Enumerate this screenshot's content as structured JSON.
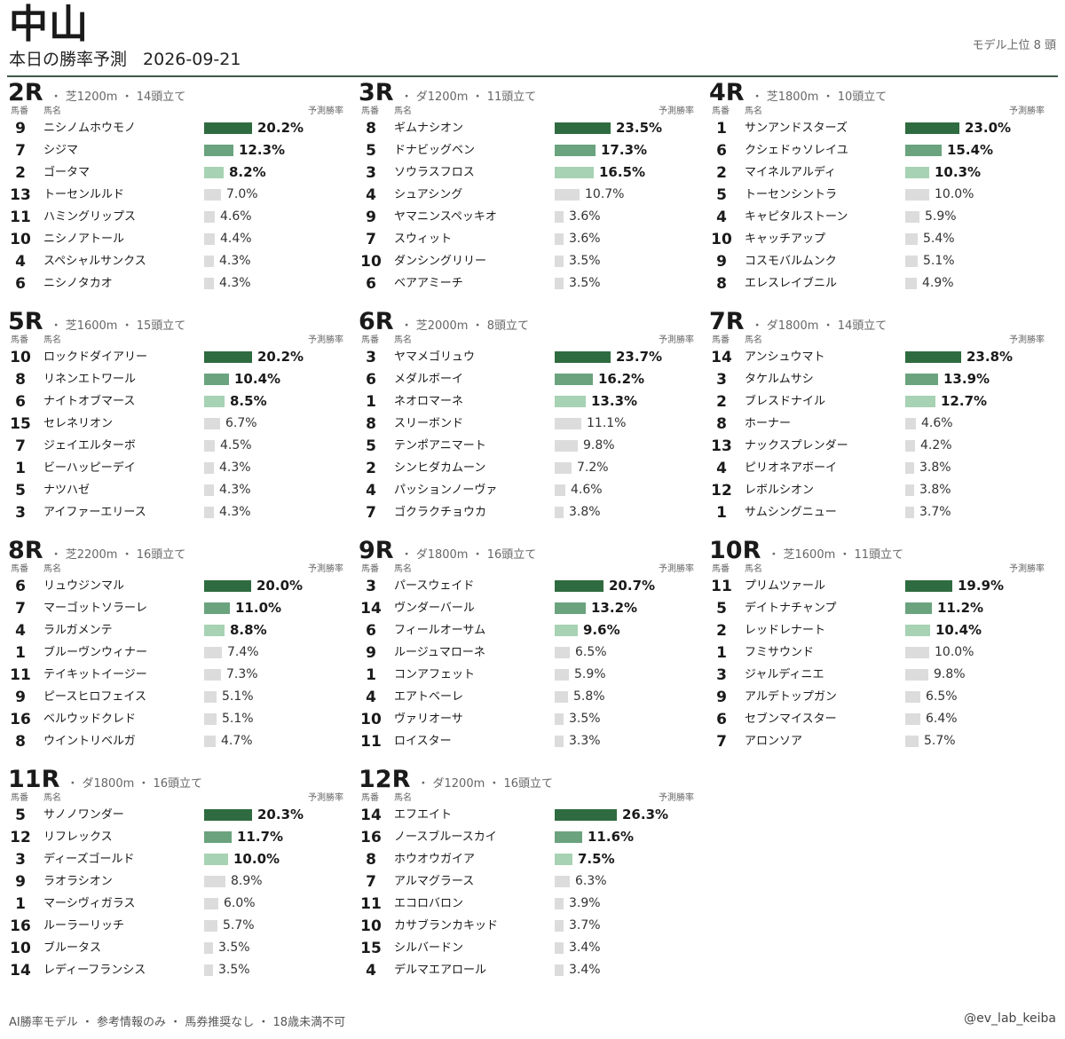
{
  "header": {
    "venue": "中山",
    "subtitle": "本日の勝率予測",
    "date": "2026-09-21",
    "top_n": "モデル上位 8 頭"
  },
  "labels": {
    "col_num": "馬番",
    "col_name": "馬名",
    "col_prob": "予測勝率"
  },
  "footer": {
    "disclaimer": "AI勝率モデル ・ 参考情報のみ ・ 馬券推奨なし ・ 18歳未満不可",
    "handle": "@ev_lab_keiba"
  },
  "colors": {
    "rank1": "#2f6b40",
    "rank2": "#6aa37e",
    "rank3": "#a7d2b3",
    "other": "#dcdcdc",
    "rule": "#3d5a47"
  },
  "chart_data": [
    {
      "type": "bar",
      "race": "2R",
      "meta": "・ 芝1200m ・ 14頭立て",
      "horse_numbers": [
        "9",
        "7",
        "2",
        "13",
        "11",
        "10",
        "4",
        "6"
      ],
      "categories": [
        "ニシノムホウモノ",
        "シジマ",
        "ゴータマ",
        "トーセンルルド",
        "ハミングリップス",
        "ニシノアトール",
        "スペシャルサンクス",
        "ニシノタカオ"
      ],
      "values": [
        20.2,
        12.3,
        8.2,
        7.0,
        4.6,
        4.4,
        4.3,
        4.3
      ],
      "labels": [
        "20.2%",
        "12.3%",
        "8.2%",
        "7.0%",
        "4.6%",
        "4.4%",
        "4.3%",
        "4.3%"
      ]
    },
    {
      "type": "bar",
      "race": "3R",
      "meta": "・ ダ1200m ・ 11頭立て",
      "horse_numbers": [
        "8",
        "5",
        "3",
        "4",
        "9",
        "7",
        "10",
        "6"
      ],
      "categories": [
        "ギムナシオン",
        "ドナビッグベン",
        "ソウラスフロス",
        "シュアシング",
        "ヤマニンスペッキオ",
        "スウィット",
        "ダンシングリリー",
        "ベアアミーチ"
      ],
      "values": [
        23.5,
        17.3,
        16.5,
        10.7,
        3.6,
        3.6,
        3.5,
        3.5
      ],
      "labels": [
        "23.5%",
        "17.3%",
        "16.5%",
        "10.7%",
        "3.6%",
        "3.6%",
        "3.5%",
        "3.5%"
      ]
    },
    {
      "type": "bar",
      "race": "4R",
      "meta": "・ 芝1800m ・ 10頭立て",
      "horse_numbers": [
        "1",
        "6",
        "2",
        "5",
        "4",
        "10",
        "9",
        "8"
      ],
      "categories": [
        "サンアンドスターズ",
        "クシェドゥソレイユ",
        "マイネルアルディ",
        "トーセンシントラ",
        "キャピタルストーン",
        "キャッチアップ",
        "コスモバルムンク",
        "エレスレイブニル"
      ],
      "values": [
        23.0,
        15.4,
        10.3,
        10.0,
        5.9,
        5.4,
        5.1,
        4.9
      ],
      "labels": [
        "23.0%",
        "15.4%",
        "10.3%",
        "10.0%",
        "5.9%",
        "5.4%",
        "5.1%",
        "4.9%"
      ]
    },
    {
      "type": "bar",
      "race": "5R",
      "meta": "・ 芝1600m ・ 15頭立て",
      "horse_numbers": [
        "10",
        "8",
        "6",
        "15",
        "7",
        "1",
        "5",
        "3"
      ],
      "categories": [
        "ロックドダイアリー",
        "リネンエトワール",
        "ナイトオブマース",
        "セレネリオン",
        "ジェイエルターボ",
        "ビーハッピーデイ",
        "ナツハゼ",
        "アイファーエリース"
      ],
      "values": [
        20.2,
        10.4,
        8.5,
        6.7,
        4.5,
        4.3,
        4.3,
        4.3
      ],
      "labels": [
        "20.2%",
        "10.4%",
        "8.5%",
        "6.7%",
        "4.5%",
        "4.3%",
        "4.3%",
        "4.3%"
      ]
    },
    {
      "type": "bar",
      "race": "6R",
      "meta": "・ 芝2000m ・ 8頭立て",
      "horse_numbers": [
        "3",
        "6",
        "1",
        "8",
        "5",
        "2",
        "4",
        "7"
      ],
      "categories": [
        "ヤマメゴリュウ",
        "メダルボーイ",
        "ネオロマーネ",
        "スリーボンド",
        "テンポアニマート",
        "シンヒダカムーン",
        "パッションノーヴァ",
        "ゴクラクチョウカ"
      ],
      "values": [
        23.7,
        16.2,
        13.3,
        11.1,
        9.8,
        7.2,
        4.6,
        3.8
      ],
      "labels": [
        "23.7%",
        "16.2%",
        "13.3%",
        "11.1%",
        "9.8%",
        "7.2%",
        "4.6%",
        "3.8%"
      ]
    },
    {
      "type": "bar",
      "race": "7R",
      "meta": "・ ダ1800m ・ 14頭立て",
      "horse_numbers": [
        "14",
        "3",
        "2",
        "8",
        "13",
        "4",
        "12",
        "1"
      ],
      "categories": [
        "アンシュウマト",
        "タケルムサシ",
        "ブレスドナイル",
        "ホーナー",
        "ナックスプレンダー",
        "ピリオネアボーイ",
        "レボルシオン",
        "サムシングニュー"
      ],
      "values": [
        23.8,
        13.9,
        12.7,
        4.6,
        4.2,
        3.8,
        3.8,
        3.7
      ],
      "labels": [
        "23.8%",
        "13.9%",
        "12.7%",
        "4.6%",
        "4.2%",
        "3.8%",
        "3.8%",
        "3.7%"
      ]
    },
    {
      "type": "bar",
      "race": "8R",
      "meta": "・ 芝2200m ・ 16頭立て",
      "horse_numbers": [
        "6",
        "7",
        "4",
        "1",
        "11",
        "9",
        "16",
        "8"
      ],
      "categories": [
        "リュウジンマル",
        "マーゴットソラーレ",
        "ラルガメンテ",
        "ブルーヴンウィナー",
        "テイキットイージー",
        "ピースヒロフェイス",
        "ベルウッドクレド",
        "ウイントリベルガ"
      ],
      "values": [
        20.0,
        11.0,
        8.8,
        7.4,
        7.3,
        5.1,
        5.1,
        4.7
      ],
      "labels": [
        "20.0%",
        "11.0%",
        "8.8%",
        "7.4%",
        "7.3%",
        "5.1%",
        "5.1%",
        "4.7%"
      ]
    },
    {
      "type": "bar",
      "race": "9R",
      "meta": "・ ダ1800m ・ 16頭立て",
      "horse_numbers": [
        "3",
        "14",
        "6",
        "9",
        "1",
        "4",
        "10",
        "11"
      ],
      "categories": [
        "パースウェイド",
        "ヴンダーバール",
        "フィールオーサム",
        "ルージュマローネ",
        "コンアフェット",
        "エアトベーレ",
        "ヴァリオーサ",
        "ロイスター"
      ],
      "values": [
        20.7,
        13.2,
        9.6,
        6.5,
        5.9,
        5.8,
        3.5,
        3.3
      ],
      "labels": [
        "20.7%",
        "13.2%",
        "9.6%",
        "6.5%",
        "5.9%",
        "5.8%",
        "3.5%",
        "3.3%"
      ]
    },
    {
      "type": "bar",
      "race": "10R",
      "meta": "・ 芝1600m ・ 11頭立て",
      "horse_numbers": [
        "11",
        "5",
        "2",
        "1",
        "3",
        "9",
        "6",
        "7"
      ],
      "categories": [
        "プリムツァール",
        "デイトナチャンプ",
        "レッドレナート",
        "フミサウンド",
        "ジャルディニエ",
        "アルデトップガン",
        "セブンマイスター",
        "アロンソア"
      ],
      "values": [
        19.9,
        11.2,
        10.4,
        10.0,
        9.8,
        6.5,
        6.4,
        5.7
      ],
      "labels": [
        "19.9%",
        "11.2%",
        "10.4%",
        "10.0%",
        "9.8%",
        "6.5%",
        "6.4%",
        "5.7%"
      ]
    },
    {
      "type": "bar",
      "race": "11R",
      "meta": "・ ダ1800m ・ 16頭立て",
      "horse_numbers": [
        "5",
        "12",
        "3",
        "9",
        "1",
        "16",
        "10",
        "14"
      ],
      "categories": [
        "サノノワンダー",
        "リフレックス",
        "ディーズゴールド",
        "ラオラシオン",
        "マーシヴィガラス",
        "ルーラーリッチ",
        "ブルータス",
        "レディーフランシス"
      ],
      "values": [
        20.3,
        11.7,
        10.0,
        8.9,
        6.0,
        5.7,
        3.5,
        3.5
      ],
      "labels": [
        "20.3%",
        "11.7%",
        "10.0%",
        "8.9%",
        "6.0%",
        "5.7%",
        "3.5%",
        "3.5%"
      ]
    },
    {
      "type": "bar",
      "race": "12R",
      "meta": "・ ダ1200m ・ 16頭立て",
      "horse_numbers": [
        "14",
        "16",
        "8",
        "7",
        "11",
        "10",
        "15",
        "4"
      ],
      "categories": [
        "エフエイト",
        "ノースブルースカイ",
        "ホウオウガイア",
        "アルマグラース",
        "エコロバロン",
        "カサブランカキッド",
        "シルバードン",
        "デルマエアロール"
      ],
      "values": [
        26.3,
        11.6,
        7.5,
        6.3,
        3.9,
        3.7,
        3.4,
        3.4
      ],
      "labels": [
        "26.3%",
        "11.6%",
        "7.5%",
        "6.3%",
        "3.9%",
        "3.7%",
        "3.4%",
        "3.4%"
      ]
    }
  ]
}
